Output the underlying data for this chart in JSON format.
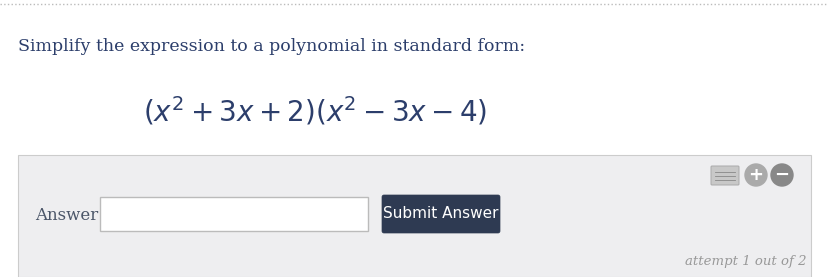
{
  "title_text": "Simplify the expression to a polynomial in standard form:",
  "math_expr": "$(x^2 + 3x + 2)(x^2 - 3x - 4)$",
  "answer_label": "Answer:",
  "submit_label": "Submit Answer",
  "attempt_text": "attempt 1 out of 2",
  "bg_color": "#ffffff",
  "panel_bg": "#eeeef0",
  "panel_border": "#cccccc",
  "input_box_color": "#ffffff",
  "input_box_border": "#bbbbbb",
  "submit_bg": "#2e3a52",
  "submit_text_color": "#ffffff",
  "title_color": "#2c3e6b",
  "math_color": "#2c3e6b",
  "answer_color": "#4a5568",
  "attempt_color": "#999999",
  "dotted_line_color": "#bbbbbb",
  "icon_color": "#aaaaaa",
  "plus_color": "#aaaaaa",
  "minus_color": "#888888",
  "title_fontsize": 12.5,
  "math_fontsize": 20,
  "answer_fontsize": 12,
  "submit_fontsize": 11,
  "attempt_fontsize": 9.5
}
